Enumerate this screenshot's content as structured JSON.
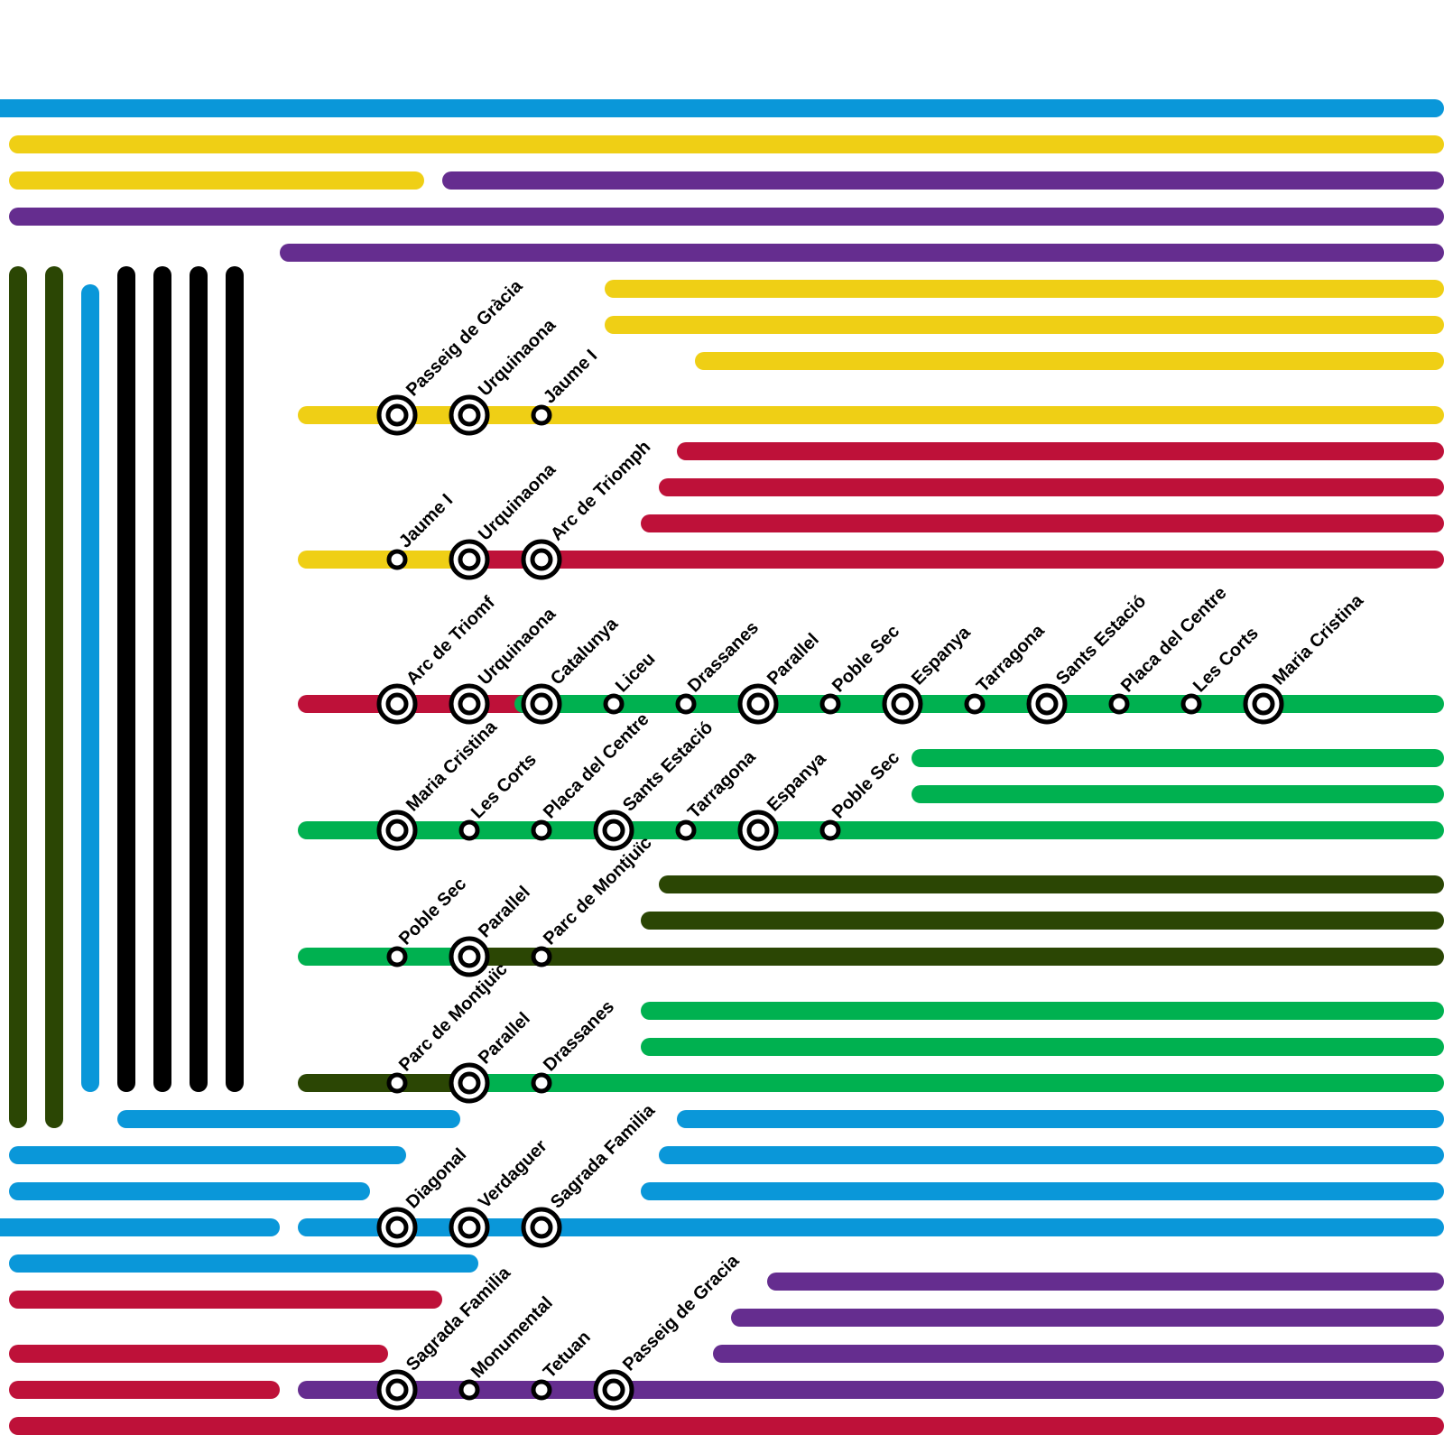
{
  "colors": {
    "blue": "#0a97d9",
    "yellow": "#efcf15",
    "purple": "#652d8f",
    "red": "#be1139",
    "green": "#00b150",
    "darkgreen": "#2b4604",
    "black": "#000000",
    "station_ring": "#000000",
    "station_fill": "#ffffff"
  },
  "bars": [
    {
      "color": "blue"
    },
    {
      "color": "yellow"
    },
    {
      "color": "yellow"
    },
    {
      "color": "purple"
    },
    {
      "color": "purple"
    },
    {
      "color": "purple"
    },
    {
      "color": "yellow"
    },
    {
      "color": "yellow"
    },
    {
      "color": "yellow"
    },
    {
      "color": "red"
    },
    {
      "color": "red"
    },
    {
      "color": "red"
    },
    {
      "color": "green"
    },
    {
      "color": "green"
    },
    {
      "color": "darkgreen"
    },
    {
      "color": "darkgreen"
    },
    {
      "color": "green"
    },
    {
      "color": "green"
    },
    {
      "color": "blue"
    },
    {
      "color": "blue"
    },
    {
      "color": "blue"
    },
    {
      "color": "blue"
    },
    {
      "color": "blue"
    },
    {
      "color": "blue"
    },
    {
      "color": "blue"
    },
    {
      "color": "red"
    },
    {
      "color": "red"
    },
    {
      "color": "red"
    },
    {
      "color": "red"
    },
    {
      "color": "purple"
    },
    {
      "color": "purple"
    },
    {
      "color": "purple"
    },
    {
      "color": "darkgreen"
    },
    {
      "color": "darkgreen"
    },
    {
      "color": "blue"
    },
    {
      "color": "black"
    },
    {
      "color": "black"
    },
    {
      "color": "black"
    },
    {
      "color": "black"
    }
  ],
  "routes": [
    {
      "segments": [
        "yellow"
      ],
      "stations": [
        {
          "name": "Passeig de Gràcia",
          "interchange": true
        },
        {
          "name": "Urquinaona",
          "interchange": true
        },
        {
          "name": "Jaume I",
          "interchange": false
        }
      ]
    },
    {
      "segments": [
        "yellow",
        "red"
      ],
      "stations": [
        {
          "name": "Jaume I",
          "interchange": false
        },
        {
          "name": "Urquinaona",
          "interchange": true
        },
        {
          "name": "Arc de Triomph",
          "interchange": true
        }
      ]
    },
    {
      "segments": [
        "red",
        "green"
      ],
      "stations": [
        {
          "name": "Arc de Triomf",
          "interchange": true
        },
        {
          "name": "Urquinaona",
          "interchange": true
        },
        {
          "name": "Catalunya",
          "interchange": true
        },
        {
          "name": "Liceu",
          "interchange": false
        },
        {
          "name": "Drassanes",
          "interchange": false
        },
        {
          "name": "Parallel",
          "interchange": true
        },
        {
          "name": "Poble Sec",
          "interchange": false
        },
        {
          "name": "Espanya",
          "interchange": true
        },
        {
          "name": "Tarragona",
          "interchange": false
        },
        {
          "name": "Sants Estació",
          "interchange": true
        },
        {
          "name": "Placa del Centre",
          "interchange": false
        },
        {
          "name": "Les Corts",
          "interchange": false
        },
        {
          "name": "Maria Cristina",
          "interchange": true
        }
      ]
    },
    {
      "segments": [
        "green"
      ],
      "stations": [
        {
          "name": "Maria Cristina",
          "interchange": true
        },
        {
          "name": "Les Corts",
          "interchange": false
        },
        {
          "name": "Placa del Centre",
          "interchange": false
        },
        {
          "name": "Sants Estació",
          "interchange": true
        },
        {
          "name": "Tarragona",
          "interchange": false
        },
        {
          "name": "Espanya",
          "interchange": true
        },
        {
          "name": "Poble Sec",
          "interchange": false
        }
      ]
    },
    {
      "segments": [
        "green",
        "darkgreen"
      ],
      "stations": [
        {
          "name": "Poble Sec",
          "interchange": false
        },
        {
          "name": "Parallel",
          "interchange": true
        },
        {
          "name": "Parc de Montjuïc",
          "interchange": false
        }
      ]
    },
    {
      "segments": [
        "darkgreen",
        "green"
      ],
      "stations": [
        {
          "name": "Parc de Montjuïc",
          "interchange": false
        },
        {
          "name": "Parallel",
          "interchange": true
        },
        {
          "name": "Drassanes",
          "interchange": false
        }
      ]
    },
    {
      "segments": [
        "blue"
      ],
      "stations": [
        {
          "name": "Diagonal",
          "interchange": true
        },
        {
          "name": "Verdaguer",
          "interchange": true
        },
        {
          "name": "Sagrada Familia",
          "interchange": true
        }
      ]
    },
    {
      "segments": [
        "purple"
      ],
      "stations": [
        {
          "name": "Sagrada Familia",
          "interchange": true
        },
        {
          "name": "Monumental",
          "interchange": false
        },
        {
          "name": "Tetuan",
          "interchange": false
        },
        {
          "name": "Passeig de Gracia",
          "interchange": true
        }
      ]
    }
  ]
}
